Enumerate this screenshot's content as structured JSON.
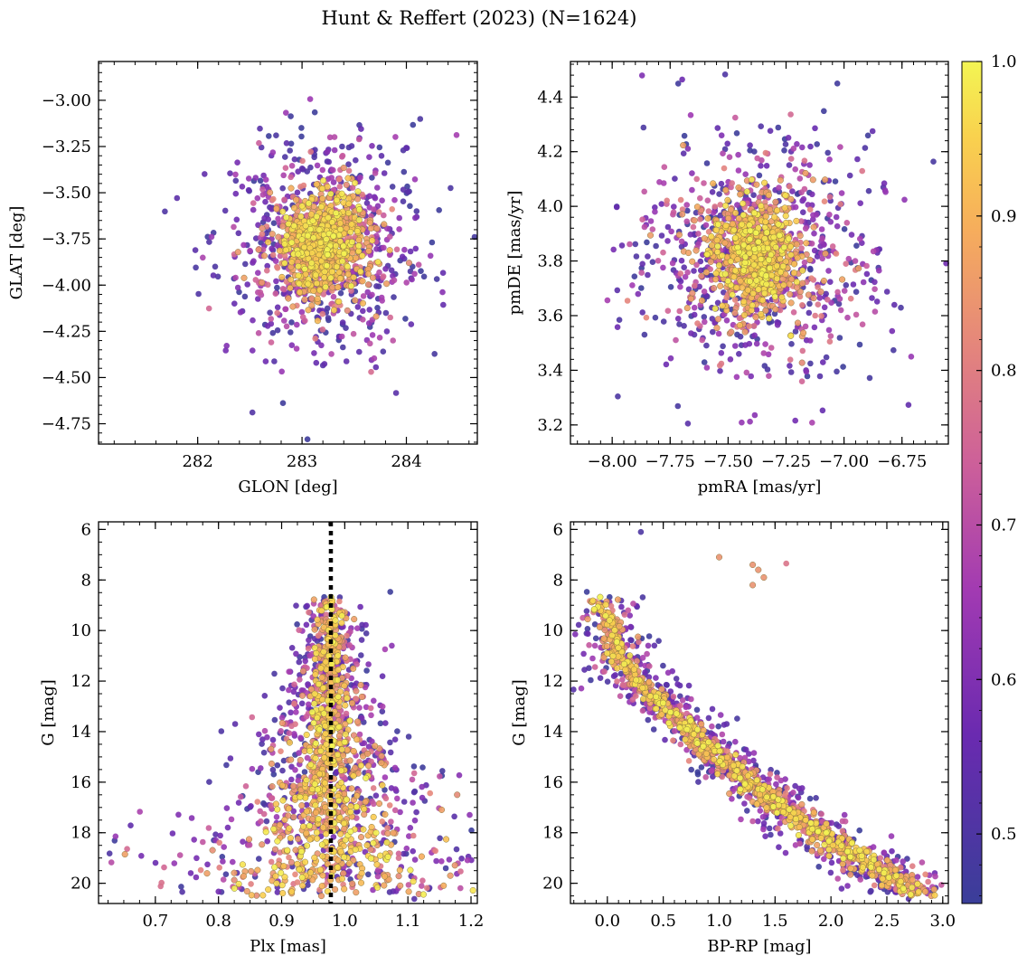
{
  "chart_data": {
    "title": "Hunt & Reffert (2023) (N=1624)",
    "type": "scatter",
    "n_points": 1624,
    "colorbar": {
      "colormap": "plasma",
      "range": [
        0.455,
        1.0
      ],
      "ticks": [
        0.5,
        0.6,
        0.7,
        0.8,
        0.9,
        1.0
      ],
      "tick_labels": [
        "0.5",
        "0.6",
        "0.7",
        "0.8",
        "0.9",
        "1.0"
      ],
      "label": ""
    },
    "panels": [
      {
        "id": "glon-glat",
        "xlabel": "GLON [deg]",
        "ylabel": "GLAT [deg]",
        "xlim": [
          281.05,
          284.68
        ],
        "ylim": [
          -4.86,
          -2.79
        ],
        "y_inverted": false,
        "xticks": [
          282,
          283,
          284
        ],
        "xtick_labels": [
          "282",
          "283",
          "284"
        ],
        "yticks": [
          -3.0,
          -3.25,
          -3.5,
          -3.75,
          -4.0,
          -4.25,
          -4.5,
          -4.75
        ],
        "ytick_labels": [
          "−3.00",
          "−3.25",
          "−3.50",
          "−3.75",
          "−4.00",
          "−4.25",
          "−4.50",
          "−4.75"
        ],
        "cluster_center": [
          283.2,
          -3.78
        ],
        "core_spread": [
          0.18,
          0.13
        ],
        "halo_spread": [
          0.5,
          0.35
        ]
      },
      {
        "id": "pmra-pmde",
        "xlabel": "pmRA [mas/yr]",
        "ylabel": "pmDE [mas/yr]",
        "xlim": [
          -8.18,
          -6.55
        ],
        "ylim": [
          3.13,
          4.53
        ],
        "y_inverted": false,
        "xticks": [
          -8.0,
          -7.75,
          -7.5,
          -7.25,
          -7.0,
          -6.75
        ],
        "xtick_labels": [
          "−8.00",
          "−7.75",
          "−7.50",
          "−7.25",
          "−7.00",
          "−6.75"
        ],
        "yticks": [
          3.2,
          3.4,
          3.6,
          3.8,
          4.0,
          4.2,
          4.4
        ],
        "ytick_labels": [
          "3.2",
          "3.4",
          "3.6",
          "3.8",
          "4.0",
          "4.2",
          "4.4"
        ],
        "cluster_center": [
          -7.38,
          3.82
        ],
        "core_spread": [
          0.09,
          0.09
        ],
        "halo_spread": [
          0.25,
          0.22
        ]
      },
      {
        "id": "plx-g",
        "xlabel": "Plx [mas]",
        "ylabel": "G [mag]",
        "xlim": [
          0.61,
          1.21
        ],
        "ylim": [
          20.8,
          5.7
        ],
        "y_inverted": true,
        "xticks": [
          0.7,
          0.8,
          0.9,
          1.0,
          1.1,
          1.2
        ],
        "xtick_labels": [
          "0.7",
          "0.8",
          "0.9",
          "1.0",
          "1.1",
          "1.2"
        ],
        "yticks": [
          6,
          8,
          10,
          12,
          14,
          16,
          18,
          20
        ],
        "ytick_labels": [
          "6",
          "8",
          "10",
          "12",
          "14",
          "16",
          "18",
          "20"
        ],
        "reference_line_plx": 0.978,
        "cluster_center_plx": 0.975
      },
      {
        "id": "bprp-g",
        "xlabel": "BP-RP [mag]",
        "ylabel": "G [mag]",
        "xlim": [
          -0.33,
          3.05
        ],
        "ylim": [
          20.8,
          5.7
        ],
        "y_inverted": true,
        "xticks": [
          0.0,
          0.5,
          1.0,
          1.5,
          2.0,
          2.5,
          3.0
        ],
        "xtick_labels": [
          "0.0",
          "0.5",
          "1.0",
          "1.5",
          "2.0",
          "2.5",
          "3.0"
        ],
        "yticks": [
          6,
          8,
          10,
          12,
          14,
          16,
          18,
          20
        ],
        "ytick_labels": [
          "6",
          "8",
          "10",
          "12",
          "14",
          "16",
          "18",
          "20"
        ],
        "sequence_color_range": [
          -0.15,
          2.7
        ],
        "sequence_g_range": [
          8.3,
          20.2
        ],
        "sequence_knots": [
          [
            -0.15,
            8.3
          ],
          [
            0.0,
            9.6
          ],
          [
            0.1,
            11.0
          ],
          [
            0.3,
            12.2
          ],
          [
            0.6,
            13.3
          ],
          [
            0.9,
            14.6
          ],
          [
            1.2,
            15.8
          ],
          [
            1.5,
            16.8
          ],
          [
            1.8,
            17.7
          ],
          [
            2.1,
            18.6
          ],
          [
            2.4,
            19.4
          ],
          [
            2.7,
            20.2
          ]
        ],
        "giant_stars": [
          [
            1.0,
            7.1
          ],
          [
            1.3,
            7.4
          ],
          [
            1.35,
            7.6
          ],
          [
            1.4,
            7.9
          ],
          [
            1.3,
            8.2
          ],
          [
            1.6,
            7.35
          ],
          [
            0.3,
            6.1
          ]
        ]
      }
    ]
  }
}
